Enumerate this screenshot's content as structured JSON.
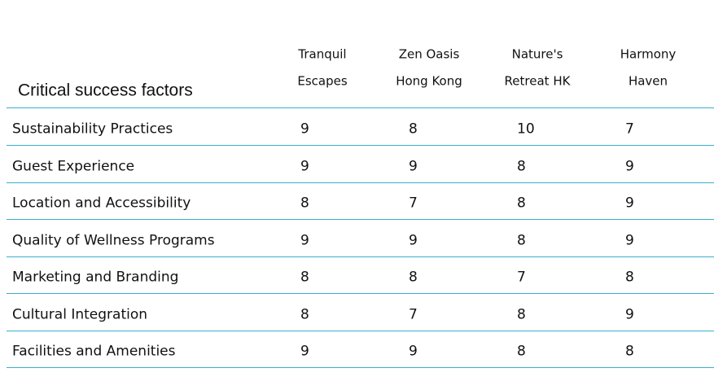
{
  "table": {
    "corner": "Critical success factors",
    "columns": [
      [
        "Tranquil",
        "Escapes"
      ],
      [
        "Zen Oasis",
        "Hong Kong"
      ],
      [
        "Nature's",
        "Retreat HK"
      ],
      [
        "Harmony",
        "Haven"
      ]
    ],
    "rows": [
      {
        "label": "Sustainability Practices",
        "values": [
          9,
          8,
          10,
          7
        ]
      },
      {
        "label": "Guest Experience",
        "values": [
          9,
          9,
          8,
          9
        ]
      },
      {
        "label": "Location and Accessibility",
        "values": [
          8,
          7,
          8,
          9
        ]
      },
      {
        "label": "Quality of Wellness Programs",
        "values": [
          9,
          9,
          8,
          9
        ]
      },
      {
        "label": "Marketing and Branding",
        "values": [
          8,
          8,
          7,
          8
        ]
      },
      {
        "label": "Cultural Integration",
        "values": [
          8,
          7,
          8,
          9
        ]
      },
      {
        "label": "Facilities and Amenities",
        "values": [
          9,
          9,
          8,
          8
        ]
      }
    ]
  }
}
